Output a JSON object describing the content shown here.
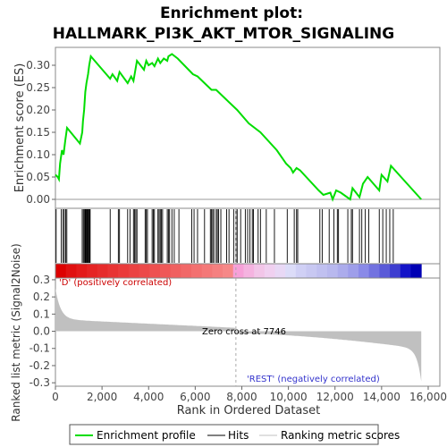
{
  "chart_data": {
    "type": "line",
    "title_line1": "Enrichment plot:",
    "title_line2": "HALLMARK_PI3K_AKT_MTOR_SIGNALING",
    "top_ylabel": "Enrichment score (ES)",
    "bottom_ylabel": "Ranked list metric (Signal2Noise)",
    "xlabel": "Rank in Ordered Dataset",
    "xlim": [
      0,
      16500
    ],
    "xticks": [
      0,
      2000,
      4000,
      6000,
      8000,
      10000,
      12000,
      14000,
      16000
    ],
    "xtick_labels": [
      "0",
      "2,000",
      "4,000",
      "6,000",
      "8,000",
      "10,000",
      "12,000",
      "14,000",
      "16,000"
    ],
    "es_ylim": [
      -0.02,
      0.34
    ],
    "es_yticks": [
      0.0,
      0.05,
      0.1,
      0.15,
      0.2,
      0.25,
      0.3
    ],
    "es_ytick_labels": [
      "0.00",
      "0.05",
      "0.10",
      "0.15",
      "0.20",
      "0.25",
      "0.30"
    ],
    "metric_ylim": [
      -0.32,
      0.31
    ],
    "metric_yticks": [
      -0.3,
      -0.2,
      -0.1,
      0.0,
      0.1,
      0.2,
      0.3
    ],
    "metric_ytick_labels": [
      "-0.3",
      "-0.2",
      "-0.1",
      "0.0",
      "0.1",
      "0.2",
      "0.3"
    ],
    "grid": false,
    "zero_cross_rank": 7746,
    "zero_cross_label": "Zero cross at 7746",
    "pos_label": "'D' (positively correlated)",
    "neg_label": "'REST' (negatively correlated)",
    "enrichment_color": "#00dd00",
    "series": [
      {
        "name": "Enrichment profile",
        "x": [
          0,
          100,
          150,
          200,
          280,
          350,
          420,
          500,
          1050,
          1150,
          1180,
          1230,
          1280,
          1330,
          1400,
          1450,
          1520,
          2350,
          2450,
          2650,
          2750,
          3100,
          3250,
          3350,
          3500,
          3650,
          3800,
          3900,
          4000,
          4150,
          4250,
          4400,
          4500,
          4650,
          4800,
          4850,
          5000,
          5250,
          5900,
          6100,
          6700,
          6900,
          7300,
          7800,
          8300,
          8800,
          9500,
          9900,
          10100,
          10200,
          10350,
          10500,
          11300,
          11500,
          11800,
          11900,
          12050,
          12250,
          12650,
          12750,
          13050,
          13200,
          13400,
          13900,
          14000,
          14250,
          14400,
          15700
        ],
        "values": [
          0.055,
          0.05,
          0.045,
          0.08,
          0.11,
          0.1,
          0.13,
          0.16,
          0.125,
          0.15,
          0.175,
          0.2,
          0.24,
          0.26,
          0.28,
          0.3,
          0.32,
          0.27,
          0.28,
          0.265,
          0.285,
          0.26,
          0.275,
          0.265,
          0.31,
          0.3,
          0.29,
          0.31,
          0.3,
          0.305,
          0.298,
          0.315,
          0.305,
          0.315,
          0.31,
          0.32,
          0.325,
          0.315,
          0.28,
          0.275,
          0.245,
          0.245,
          0.225,
          0.2,
          0.17,
          0.15,
          0.11,
          0.08,
          0.07,
          0.06,
          0.07,
          0.065,
          0.02,
          0.01,
          0.015,
          0.0,
          0.02,
          0.015,
          0.0,
          0.025,
          0.005,
          0.035,
          0.05,
          0.02,
          0.055,
          0.04,
          0.075,
          0.0
        ]
      }
    ],
    "hits": [
      30,
      250,
      330,
      380,
      440,
      490,
      1150,
      1200,
      1240,
      1280,
      1300,
      1330,
      1360,
      1390,
      1420,
      1460,
      1490,
      2350,
      2700,
      2750,
      3100,
      3200,
      3350,
      3400,
      3450,
      3500,
      3850,
      3900,
      3950,
      4150,
      4200,
      4250,
      4400,
      4450,
      4500,
      4550,
      4600,
      4800,
      4850,
      4900,
      5000,
      5100,
      5300,
      5850,
      5950,
      6100,
      6400,
      6650,
      6700,
      6750,
      6800,
      6900,
      6950,
      7000,
      7100,
      7350,
      7450,
      7650,
      7750,
      7800,
      7950,
      8150,
      8250,
      8350,
      8450,
      8500,
      8700,
      8800,
      9050,
      9400,
      9950,
      10250,
      10350,
      10400,
      11350,
      11450,
      11750,
      11950,
      12100,
      12150,
      12550,
      12700,
      12750,
      13050,
      13150,
      13300,
      13450,
      13900,
      14050,
      14200,
      14350,
      14500
    ],
    "heat_bins": [
      "#dd0000",
      "#e01010",
      "#e31a1a",
      "#e52323",
      "#e62b2b",
      "#e83333",
      "#ea3b3b",
      "#eb4242",
      "#ec4949",
      "#ee5050",
      "#ef5858",
      "#f06060",
      "#f16868",
      "#f37070",
      "#f47878",
      "#f58080",
      "#f68888",
      "#f7a0d8",
      "#f5b3e0",
      "#f2c5e8",
      "#f0d0f0",
      "#e8d8f5",
      "#dcdcf8",
      "#d0d0f5",
      "#c8c8f2",
      "#c0c0f0",
      "#b8b8ee",
      "#acacec",
      "#9e9eea",
      "#8a8ae8",
      "#7272e0",
      "#5a5ad8",
      "#3d3dd0",
      "#1414c8",
      "#0000b4"
    ],
    "legend": [
      {
        "label": "Enrichment profile",
        "color": "#00dd00"
      },
      {
        "label": "Hits",
        "color": "#000000"
      },
      {
        "label": "Ranking metric scores",
        "color": "#c0c0c0"
      }
    ]
  }
}
